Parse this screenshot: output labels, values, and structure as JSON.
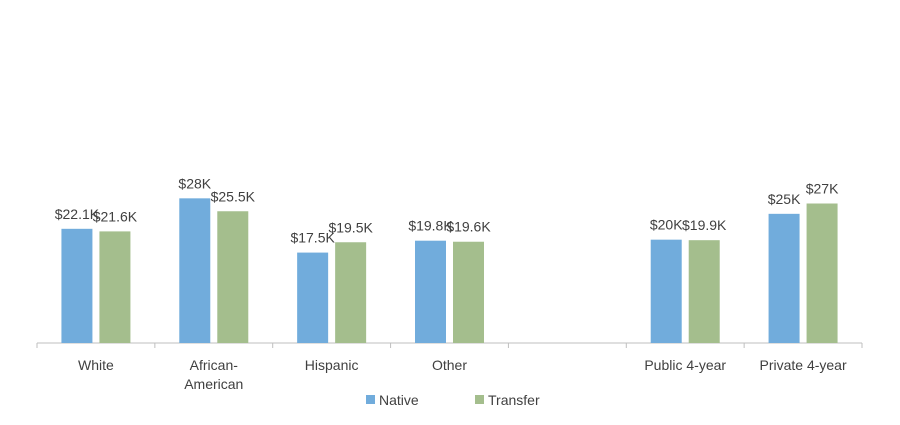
{
  "chart_data": {
    "type": "bar",
    "categories": [
      "White",
      "African-American",
      "Hispanic",
      "Other",
      null,
      "Public 4-year",
      "Private 4-year"
    ],
    "series": [
      {
        "name": "Native",
        "color": "#71acdc",
        "values": [
          22.1,
          28,
          17.5,
          19.8,
          null,
          20,
          25
        ],
        "value_labels": [
          "$22.1K",
          "$28K",
          "$17.5K",
          "$19.8K",
          null,
          "$20K",
          "$25K"
        ]
      },
      {
        "name": "Transfer",
        "color": "#a4be8d",
        "values": [
          21.6,
          25.5,
          19.5,
          19.6,
          null,
          19.9,
          27
        ],
        "value_labels": [
          "$21.6K",
          "$25.5K",
          "$19.5K",
          "$19.6K",
          null,
          "$19.9K",
          "$27K"
        ]
      }
    ],
    "ylim": [
      0,
      60
    ]
  }
}
